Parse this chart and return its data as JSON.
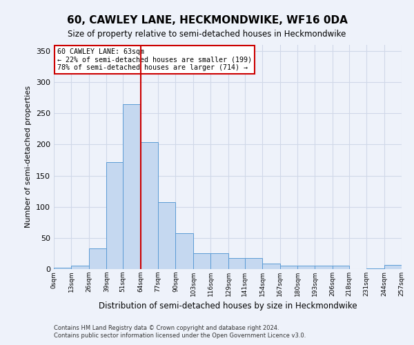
{
  "title": "60, CAWLEY LANE, HECKMONDWIKE, WF16 0DA",
  "subtitle": "Size of property relative to semi-detached houses in Heckmondwike",
  "xlabel": "Distribution of semi-detached houses by size in Heckmondwike",
  "ylabel": "Number of semi-detached properties",
  "footnote1": "Contains HM Land Registry data © Crown copyright and database right 2024.",
  "footnote2": "Contains public sector information licensed under the Open Government Licence v3.0.",
  "annotation_title": "60 CAWLEY LANE: 63sqm",
  "annotation_line1": "← 22% of semi-detached houses are smaller (199)",
  "annotation_line2": "78% of semi-detached houses are larger (714) →",
  "property_size": 63,
  "bin_edges": [
    0,
    13,
    26,
    39,
    51,
    64,
    77,
    90,
    103,
    116,
    129,
    141,
    154,
    167,
    180,
    193,
    206,
    218,
    231,
    244,
    257
  ],
  "bar_heights": [
    2,
    5,
    33,
    172,
    265,
    204,
    108,
    58,
    25,
    25,
    18,
    18,
    9,
    6,
    5,
    5,
    6,
    0,
    1,
    7
  ],
  "bar_color": "#c5d8f0",
  "bar_edge_color": "#5b9bd5",
  "vline_color": "#cc0000",
  "vline_x": 64,
  "annotation_box_color": "#ffffff",
  "annotation_box_edge": "#cc0000",
  "grid_color": "#d0d8e8",
  "background_color": "#eef2fa",
  "ylim": [
    0,
    360
  ],
  "yticks": [
    0,
    50,
    100,
    150,
    200,
    250,
    300,
    350
  ]
}
